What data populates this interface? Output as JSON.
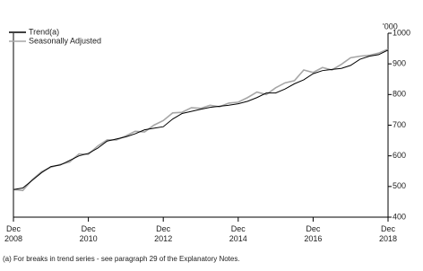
{
  "chart_data": {
    "type": "line",
    "y_label": "'000",
    "footnote": "(a) For breaks in trend series - see paragraph 29 of the Explanatory Notes.",
    "x": [
      "Dec 2008",
      "Mar 2009",
      "Jun 2009",
      "Sep 2009",
      "Dec 2009",
      "Mar 2010",
      "Jun 2010",
      "Sep 2010",
      "Dec 2010",
      "Mar 2011",
      "Jun 2011",
      "Sep 2011",
      "Dec 2011",
      "Mar 2012",
      "Jun 2012",
      "Sep 2012",
      "Dec 2012",
      "Mar 2013",
      "Jun 2013",
      "Sep 2013",
      "Dec 2013",
      "Mar 2014",
      "Jun 2014",
      "Sep 2014",
      "Dec 2014",
      "Mar 2015",
      "Jun 2015",
      "Sep 2015",
      "Dec 2015",
      "Mar 2016",
      "Jun 2016",
      "Sep 2016",
      "Dec 2016",
      "Mar 2017",
      "Jun 2017",
      "Sep 2017",
      "Dec 2017",
      "Mar 2018",
      "Jun 2018",
      "Sep 2018",
      "Dec 2018"
    ],
    "series": [
      {
        "name": "Trend(a)",
        "color": "#000000",
        "values": [
          490,
          495,
          520,
          545,
          565,
          570,
          585,
          600,
          608,
          625,
          648,
          655,
          662,
          672,
          685,
          690,
          695,
          720,
          738,
          745,
          752,
          758,
          762,
          765,
          770,
          778,
          790,
          805,
          805,
          818,
          835,
          848,
          868,
          878,
          882,
          885,
          895,
          915,
          925,
          930,
          945
        ]
      },
      {
        "name": "Seasonally Adjusted",
        "color": "#a6a6a6",
        "values": [
          490,
          487,
          522,
          548,
          563,
          572,
          580,
          606,
          605,
          632,
          652,
          652,
          665,
          680,
          678,
          700,
          715,
          740,
          742,
          757,
          755,
          765,
          760,
          772,
          775,
          790,
          808,
          800,
          822,
          838,
          845,
          880,
          872,
          888,
          880,
          898,
          920,
          925,
          928,
          935,
          948
        ]
      }
    ],
    "xlim": [
      "Dec 2008",
      "Dec 2018"
    ],
    "xticks": [
      "Dec 2008",
      "Dec 2010",
      "Dec 2012",
      "Dec 2014",
      "Dec 2016",
      "Dec 2018"
    ],
    "ylim": [
      400,
      1000
    ],
    "yticks": [
      400,
      500,
      600,
      700,
      800,
      900,
      1000
    ],
    "legend": "top-left"
  }
}
